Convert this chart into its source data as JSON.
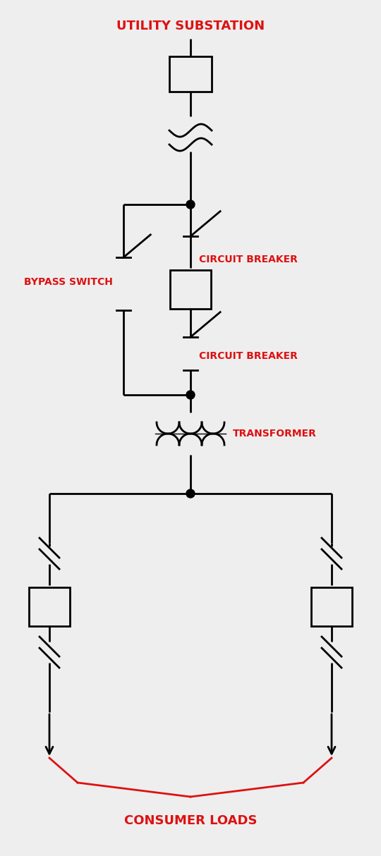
{
  "bg_color": "#eeeeee",
  "line_color": "#000000",
  "red_color": "#dd1111",
  "title_text": "UTILITY SUBSTATION",
  "cb_label": "CIRCUIT BREAKER",
  "bypass_label": "BYPASS SWITCH",
  "transformer_label": "TRANSFORMER",
  "consumer_label": "CONSUMER LOADS",
  "fig_width": 5.4,
  "fig_height": 12.14,
  "lw": 2.0
}
